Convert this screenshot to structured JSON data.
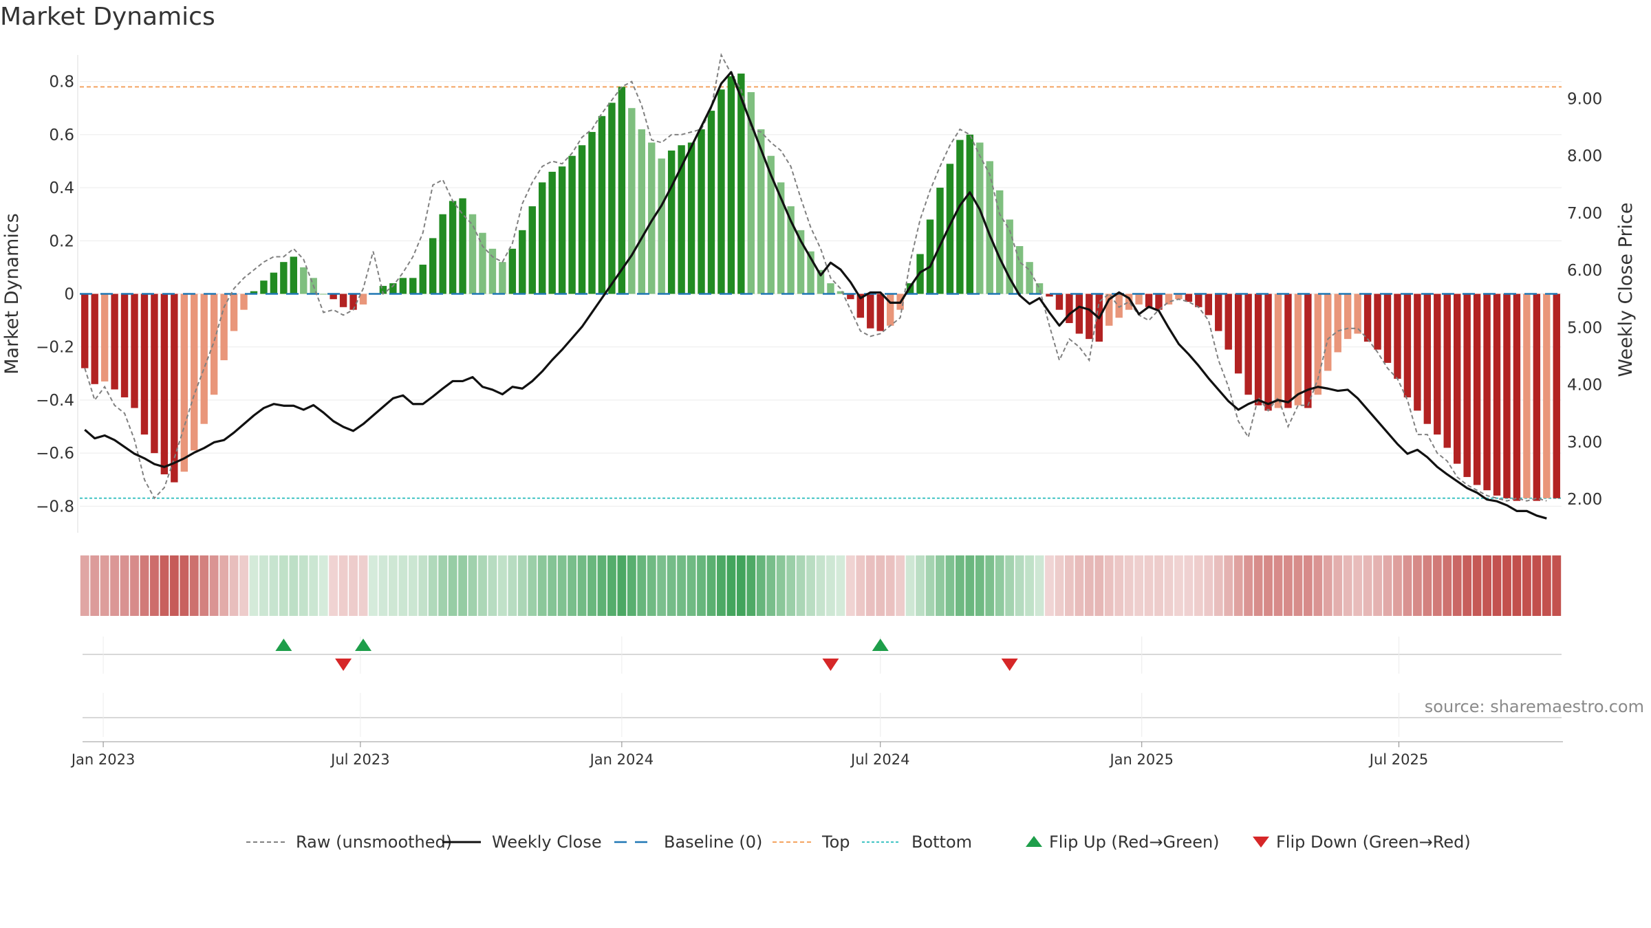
{
  "chart_data": {
    "type": "bar",
    "title": "Market Dynamics",
    "ylabel": "Market Dynamics",
    "y2label": "Weekly Close Price",
    "source": "source: sharemaestro.com",
    "ylim": [
      -0.9,
      0.9
    ],
    "y2lim": [
      1.4,
      9.75
    ],
    "yticks": [
      0.8,
      0.6,
      0.4,
      0.2,
      0,
      -0.2,
      -0.4,
      -0.6,
      -0.8
    ],
    "ytick_labels": [
      "0.8",
      "0.6",
      "0.4",
      "0.2",
      "0",
      "−0.2",
      "−0.4",
      "−0.6",
      "−0.8"
    ],
    "y2ticks": [
      9,
      8,
      7,
      6,
      5,
      4,
      3,
      2
    ],
    "y2tick_labels": [
      "9.00",
      "8.00",
      "7.00",
      "6.00",
      "5.00",
      "4.00",
      "3.00",
      "2.00"
    ],
    "xticks": [
      {
        "date": "2023-01-01",
        "label": "Jan 2023"
      },
      {
        "date": "2023-07-01",
        "label": "Jul 2023"
      },
      {
        "date": "2024-01-01",
        "label": "Jan 2024"
      },
      {
        "date": "2024-07-01",
        "label": "Jul 2024"
      },
      {
        "date": "2025-01-01",
        "label": "Jan 2025"
      },
      {
        "date": "2025-07-01",
        "label": "Jul 2025"
      }
    ],
    "x_start": "2022-12-19",
    "top_level": 0.78,
    "bottom_level": -0.77,
    "colors": {
      "green_strong": "#228b22",
      "green_light": "#7fbf7f",
      "red_strong": "#b22222",
      "red_light": "#e9967a",
      "raw": "#808080",
      "close": "#111111",
      "baseline": "#1f77b4",
      "top": "#f4a460",
      "bottom": "#40c4c4",
      "flip_up": "#1e9e4a",
      "flip_down": "#d62728"
    },
    "series": [
      {
        "name": "Market Dynamics",
        "values": [
          -0.28,
          -0.34,
          -0.33,
          -0.36,
          -0.39,
          -0.43,
          -0.53,
          -0.6,
          -0.68,
          -0.71,
          -0.67,
          -0.59,
          -0.49,
          -0.38,
          -0.25,
          -0.14,
          -0.06,
          0.01,
          0.05,
          0.08,
          0.12,
          0.14,
          0.1,
          0.06,
          0.0,
          -0.02,
          -0.05,
          -0.06,
          -0.04,
          0.0,
          0.03,
          0.04,
          0.06,
          0.06,
          0.11,
          0.21,
          0.3,
          0.35,
          0.36,
          0.3,
          0.23,
          0.17,
          0.12,
          0.17,
          0.24,
          0.33,
          0.42,
          0.46,
          0.48,
          0.52,
          0.56,
          0.61,
          0.67,
          0.72,
          0.78,
          0.7,
          0.62,
          0.57,
          0.51,
          0.54,
          0.56,
          0.57,
          0.62,
          0.69,
          0.77,
          0.82,
          0.83,
          0.76,
          0.62,
          0.52,
          0.42,
          0.33,
          0.24,
          0.16,
          0.09,
          0.04,
          0.01,
          -0.02,
          -0.09,
          -0.13,
          -0.14,
          -0.12,
          -0.06,
          0.04,
          0.15,
          0.28,
          0.4,
          0.49,
          0.58,
          0.6,
          0.57,
          0.5,
          0.39,
          0.28,
          0.18,
          0.12,
          0.04,
          -0.01,
          -0.06,
          -0.11,
          -0.15,
          -0.17,
          -0.18,
          -0.12,
          -0.09,
          -0.06,
          -0.04,
          -0.05,
          -0.06,
          -0.04,
          -0.02,
          -0.03,
          -0.05,
          -0.08,
          -0.14,
          -0.21,
          -0.3,
          -0.38,
          -0.42,
          -0.44,
          -0.43,
          -0.43,
          -0.42,
          -0.43,
          -0.38,
          -0.29,
          -0.22,
          -0.17,
          -0.15,
          -0.18,
          -0.21,
          -0.26,
          -0.32,
          -0.39,
          -0.44,
          -0.49,
          -0.53,
          -0.58,
          -0.64,
          -0.69,
          -0.72,
          -0.74,
          -0.76,
          -0.77,
          -0.78,
          -0.77,
          -0.78,
          -0.77,
          -0.77
        ]
      },
      {
        "name": "Raw (unsmoothed)",
        "values": [
          -0.28,
          -0.4,
          -0.35,
          -0.42,
          -0.45,
          -0.55,
          -0.7,
          -0.77,
          -0.73,
          -0.62,
          -0.5,
          -0.38,
          -0.28,
          -0.18,
          -0.05,
          0.02,
          0.06,
          0.09,
          0.12,
          0.14,
          0.14,
          0.17,
          0.13,
          0.03,
          -0.07,
          -0.06,
          -0.08,
          -0.06,
          0.02,
          0.16,
          0.0,
          0.03,
          0.08,
          0.14,
          0.23,
          0.41,
          0.43,
          0.35,
          0.3,
          0.26,
          0.18,
          0.14,
          0.12,
          0.19,
          0.34,
          0.42,
          0.48,
          0.5,
          0.49,
          0.53,
          0.59,
          0.62,
          0.68,
          0.73,
          0.78,
          0.8,
          0.71,
          0.58,
          0.57,
          0.6,
          0.6,
          0.61,
          0.62,
          0.7,
          0.9,
          0.83,
          0.77,
          0.62,
          0.61,
          0.57,
          0.54,
          0.48,
          0.36,
          0.25,
          0.17,
          0.06,
          0.02,
          -0.06,
          -0.14,
          -0.16,
          -0.15,
          -0.12,
          -0.09,
          0.12,
          0.28,
          0.39,
          0.48,
          0.56,
          0.62,
          0.6,
          0.52,
          0.45,
          0.3,
          0.24,
          0.12,
          0.09,
          0.02,
          -0.12,
          -0.25,
          -0.17,
          -0.2,
          -0.25,
          -0.03,
          0.0,
          -0.05,
          -0.03,
          -0.08,
          -0.1,
          -0.06,
          -0.03,
          -0.02,
          -0.03,
          -0.05,
          -0.1,
          -0.25,
          -0.35,
          -0.48,
          -0.54,
          -0.39,
          -0.44,
          -0.39,
          -0.5,
          -0.42,
          -0.42,
          -0.32,
          -0.17,
          -0.14,
          -0.13,
          -0.13,
          -0.17,
          -0.22,
          -0.28,
          -0.32,
          -0.4,
          -0.53,
          -0.53,
          -0.6,
          -0.63,
          -0.69,
          -0.72,
          -0.74,
          -0.76,
          -0.77,
          -0.78,
          -0.77,
          -0.78,
          -0.77,
          -0.78
        ]
      },
      {
        "name": "Weekly Close",
        "values": [
          3.2,
          3.05,
          3.1,
          3.02,
          2.9,
          2.78,
          2.7,
          2.6,
          2.55,
          2.62,
          2.7,
          2.8,
          2.88,
          2.98,
          3.02,
          3.15,
          3.3,
          3.45,
          3.58,
          3.65,
          3.62,
          3.62,
          3.55,
          3.63,
          3.5,
          3.35,
          3.25,
          3.18,
          3.3,
          3.45,
          3.6,
          3.75,
          3.8,
          3.65,
          3.65,
          3.78,
          3.92,
          4.05,
          4.05,
          4.12,
          3.95,
          3.9,
          3.82,
          3.95,
          3.92,
          4.05,
          4.22,
          4.42,
          4.6,
          4.8,
          5.0,
          5.25,
          5.5,
          5.75,
          6.0,
          6.25,
          6.55,
          6.85,
          7.12,
          7.45,
          7.8,
          8.15,
          8.5,
          8.85,
          9.25,
          9.45,
          9.0,
          8.55,
          8.1,
          7.65,
          7.25,
          6.85,
          6.5,
          6.2,
          5.9,
          6.12,
          6.0,
          5.78,
          5.5,
          5.6,
          5.6,
          5.42,
          5.42,
          5.7,
          5.95,
          6.05,
          6.42,
          6.78,
          7.12,
          7.35,
          7.05,
          6.6,
          6.2,
          5.85,
          5.55,
          5.4,
          5.5,
          5.25,
          5.02,
          5.22,
          5.35,
          5.3,
          5.15,
          5.48,
          5.6,
          5.5,
          5.22,
          5.35,
          5.28,
          4.98,
          4.7,
          4.52,
          4.32,
          4.1,
          3.9,
          3.7,
          3.55,
          3.65,
          3.72,
          3.65,
          3.72,
          3.68,
          3.82,
          3.9,
          3.95,
          3.92,
          3.88,
          3.9,
          3.75,
          3.55,
          3.35,
          3.15,
          2.95,
          2.78,
          2.85,
          2.72,
          2.55,
          2.42,
          2.3,
          2.18,
          2.1,
          1.98,
          1.95,
          1.88,
          1.78,
          1.78,
          1.7,
          1.65
        ]
      }
    ],
    "flip_up": [
      "2023-05-08",
      "2023-07-03",
      "2024-07-01"
    ],
    "flip_down": [
      "2023-06-19",
      "2024-05-27",
      "2024-09-30"
    ],
    "legend": [
      {
        "key": "raw",
        "label": "Raw (unsmoothed)"
      },
      {
        "key": "close",
        "label": "Weekly Close"
      },
      {
        "key": "baseline",
        "label": "Baseline (0)"
      },
      {
        "key": "top",
        "label": "Top"
      },
      {
        "key": "bottom",
        "label": "Bottom"
      },
      {
        "key": "flip_up",
        "label": "Flip Up (Red→Green)"
      },
      {
        "key": "flip_down",
        "label": "Flip Down (Green→Red)"
      }
    ]
  }
}
